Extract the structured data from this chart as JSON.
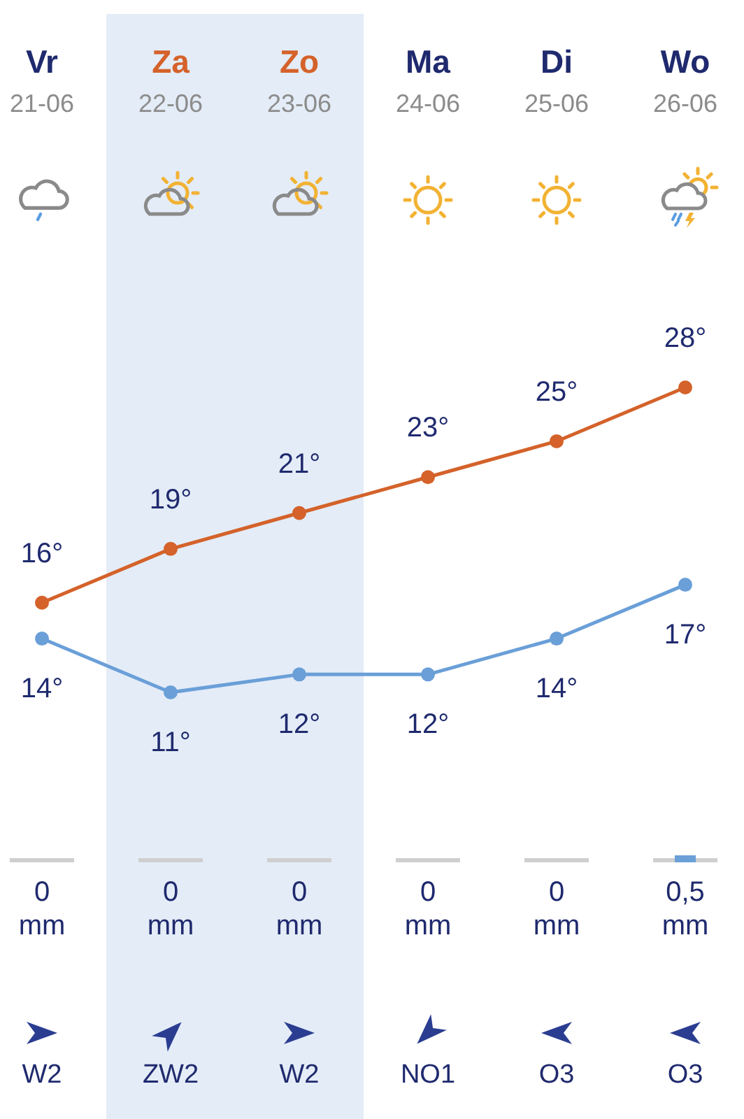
{
  "chart_data": [
    {
      "type": "line",
      "categories": [
        "Vr 21-06",
        "Za 22-06",
        "Zo 23-06",
        "Ma 24-06",
        "Di 25-06",
        "Wo 26-06"
      ],
      "series": [
        {
          "color": "#d4622a",
          "values": [
            16,
            19,
            21,
            23,
            25,
            28
          ],
          "value_labels": [
            "16°",
            "19°",
            "21°",
            "23°",
            "25°",
            "28°"
          ]
        },
        {
          "color": "#6a9fd8",
          "values": [
            14,
            11,
            12,
            12,
            14,
            17
          ],
          "value_labels": [
            "14°",
            "11°",
            "12°",
            "12°",
            "14°",
            "17°"
          ]
        }
      ],
      "marker": "circle",
      "bands": [
        {
          "axis": "x",
          "from": "Za 22-06",
          "to": "Zo 23-06",
          "color": "#e4ecf7"
        }
      ]
    },
    {
      "type": "bar",
      "categories": [
        null,
        null,
        null,
        null,
        null,
        null
      ],
      "values": [
        0,
        0,
        0,
        0,
        0,
        0.5
      ],
      "value_labels": [
        "0 mm",
        "0 mm",
        "0 mm",
        "0 mm",
        "0 mm",
        "0,5 mm"
      ],
      "color": "#6a9fd8"
    },
    {
      "type": "other",
      "categories": [
        "W2",
        "ZW2",
        "W2",
        "NO1",
        "O3",
        "O3"
      ]
    }
  ]
}
